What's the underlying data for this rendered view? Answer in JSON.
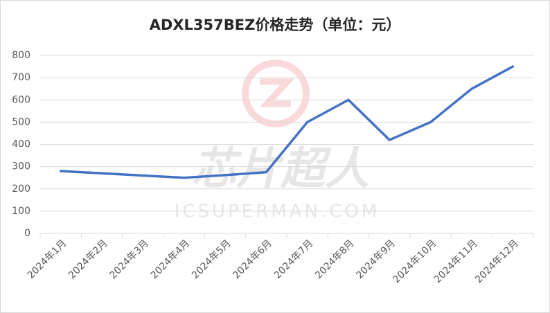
{
  "chart_data": {
    "type": "line",
    "title": "ADXL357BEZ价格走势（单位：元）",
    "watermark": "芯片超人",
    "watermark_url": "ICSUPERMAN.COM",
    "categories": [
      "2024年1月",
      "2024年2月",
      "2024年3月",
      "2024年4月",
      "2024年5月",
      "2024年6月",
      "2024年7月",
      "2024年8月",
      "2024年9月",
      "2024年10月",
      "2024年11月",
      "2024年12月"
    ],
    "series": [
      {
        "name": "价格",
        "color": "#4472c4",
        "values": [
          280,
          270,
          260,
          250,
          262,
          275,
          500,
          600,
          420,
          500,
          650,
          750
        ]
      }
    ],
    "ylim": [
      0,
      800
    ],
    "yticks": [
      0,
      100,
      200,
      300,
      400,
      500,
      600,
      700,
      800
    ],
    "grid": true
  }
}
